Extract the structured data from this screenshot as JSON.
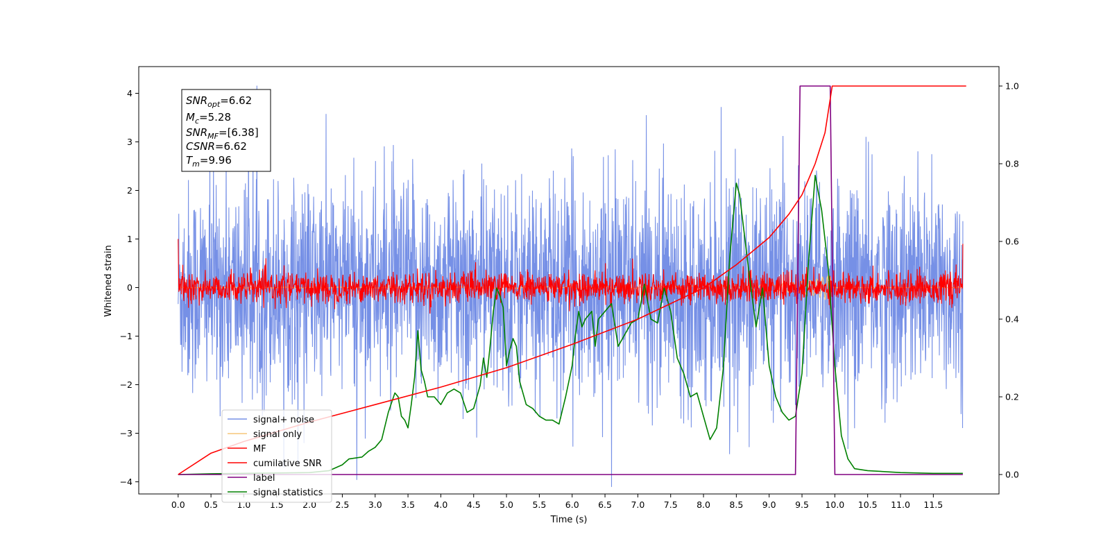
{
  "chart_data": {
    "type": "line",
    "xlabel": "Time (s)",
    "ylabel": "Whitened strain",
    "xlim": [
      -0.6,
      12.5
    ],
    "ylim": [
      -4.25,
      4.55
    ],
    "ylim_right": [
      -0.05,
      1.05
    ],
    "x_ticks": [
      "0.0",
      "0.5",
      "1.0",
      "1.5",
      "2.0",
      "2.5",
      "3.0",
      "3.5",
      "4.0",
      "4.5",
      "5.0",
      "5.5",
      "6.0",
      "6.5",
      "7.0",
      "7.5",
      "8.0",
      "8.5",
      "9.0",
      "9.5",
      "10.0",
      "10.5",
      "11.0",
      "11.5"
    ],
    "y_ticks_left": [
      "−4",
      "−3",
      "−2",
      "−1",
      "0",
      "1",
      "2",
      "3",
      "4"
    ],
    "y_ticks_right": [
      "0.0",
      "0.2",
      "0.4",
      "0.6",
      "0.8",
      "1.0"
    ],
    "grid": false,
    "legend_position": "lower-left",
    "annotation_box": {
      "lines": [
        {
          "sym": "SNR",
          "sub": "opt",
          "value": "=6.62"
        },
        {
          "sym": "M",
          "sub": "c",
          "value": "=5.28"
        },
        {
          "sym": "SNR",
          "sub": "MF",
          "value": "=[6.38]"
        },
        {
          "sym": "CSNR",
          "sub": "",
          "value": "=6.62"
        },
        {
          "sym": "T",
          "sub": "m",
          "value": "=9.96"
        }
      ]
    },
    "series": [
      {
        "name": "signal+ noise",
        "color": "#7690e6",
        "axis": "left",
        "kind": "noise",
        "envelope_max": 4.2,
        "envelope_typical": 2.6
      },
      {
        "name": "signal only",
        "color": "#f5c679",
        "axis": "left",
        "kind": "chirp",
        "peak_time": 9.96,
        "amplitude": 0.35
      },
      {
        "name": "MF",
        "color": "#ff0000",
        "axis": "left",
        "kind": "noise",
        "envelope_typical": 0.35
      },
      {
        "name": "cumilative SNR",
        "color": "#ff0000",
        "axis": "right",
        "x": [
          0.0,
          0.5,
          1.0,
          2.0,
          3.0,
          4.0,
          5.0,
          6.0,
          7.0,
          8.0,
          8.5,
          9.0,
          9.3,
          9.5,
          9.7,
          9.85,
          9.96,
          12.0
        ],
        "values": [
          0.0,
          0.055,
          0.085,
          0.135,
          0.18,
          0.225,
          0.275,
          0.335,
          0.4,
          0.48,
          0.54,
          0.61,
          0.67,
          0.72,
          0.8,
          0.88,
          1.0,
          1.0
        ]
      },
      {
        "name": "label",
        "color": "#800080",
        "axis": "right",
        "x": [
          0.0,
          9.4,
          9.47,
          9.93,
          10.0,
          11.95
        ],
        "values": [
          0.0,
          0.0,
          1.0,
          1.0,
          0.0,
          0.0
        ]
      },
      {
        "name": "signal statistics",
        "color": "#008000",
        "axis": "right",
        "x": [
          0.0,
          0.5,
          1.0,
          1.5,
          2.0,
          2.3,
          2.5,
          2.6,
          2.8,
          2.9,
          3.0,
          3.1,
          3.2,
          3.3,
          3.35,
          3.4,
          3.45,
          3.5,
          3.55,
          3.6,
          3.65,
          3.7,
          3.75,
          3.8,
          3.9,
          4.0,
          4.1,
          4.2,
          4.3,
          4.4,
          4.5,
          4.6,
          4.65,
          4.7,
          4.75,
          4.8,
          4.85,
          4.9,
          4.95,
          5.0,
          5.05,
          5.1,
          5.15,
          5.2,
          5.3,
          5.4,
          5.5,
          5.6,
          5.7,
          5.8,
          5.9,
          6.0,
          6.05,
          6.1,
          6.15,
          6.2,
          6.3,
          6.35,
          6.4,
          6.5,
          6.55,
          6.6,
          6.7,
          6.8,
          6.9,
          7.0,
          7.1,
          7.2,
          7.3,
          7.4,
          7.5,
          7.6,
          7.7,
          7.8,
          7.9,
          8.0,
          8.1,
          8.2,
          8.3,
          8.4,
          8.5,
          8.55,
          8.6,
          8.7,
          8.8,
          8.9,
          9.0,
          9.1,
          9.2,
          9.3,
          9.4,
          9.5,
          9.6,
          9.7,
          9.8,
          9.9,
          10.0,
          10.1,
          10.2,
          10.3,
          10.5,
          11.0,
          11.5,
          11.95
        ],
        "values": [
          0.0,
          0.002,
          0.003,
          0.004,
          0.005,
          0.01,
          0.025,
          0.04,
          0.045,
          0.06,
          0.07,
          0.09,
          0.16,
          0.21,
          0.2,
          0.15,
          0.14,
          0.12,
          0.18,
          0.25,
          0.37,
          0.27,
          0.24,
          0.2,
          0.2,
          0.18,
          0.21,
          0.22,
          0.21,
          0.16,
          0.17,
          0.23,
          0.3,
          0.25,
          0.33,
          0.42,
          0.48,
          0.46,
          0.43,
          0.28,
          0.32,
          0.35,
          0.33,
          0.24,
          0.18,
          0.17,
          0.15,
          0.14,
          0.14,
          0.13,
          0.2,
          0.28,
          0.36,
          0.42,
          0.38,
          0.4,
          0.42,
          0.33,
          0.4,
          0.42,
          0.43,
          0.44,
          0.33,
          0.36,
          0.39,
          0.4,
          0.49,
          0.4,
          0.39,
          0.48,
          0.42,
          0.3,
          0.26,
          0.2,
          0.21,
          0.15,
          0.09,
          0.12,
          0.27,
          0.56,
          0.75,
          0.72,
          0.65,
          0.51,
          0.38,
          0.48,
          0.28,
          0.2,
          0.16,
          0.14,
          0.15,
          0.26,
          0.55,
          0.77,
          0.68,
          0.53,
          0.28,
          0.1,
          0.04,
          0.015,
          0.01,
          0.005,
          0.003,
          0.003
        ]
      }
    ]
  }
}
